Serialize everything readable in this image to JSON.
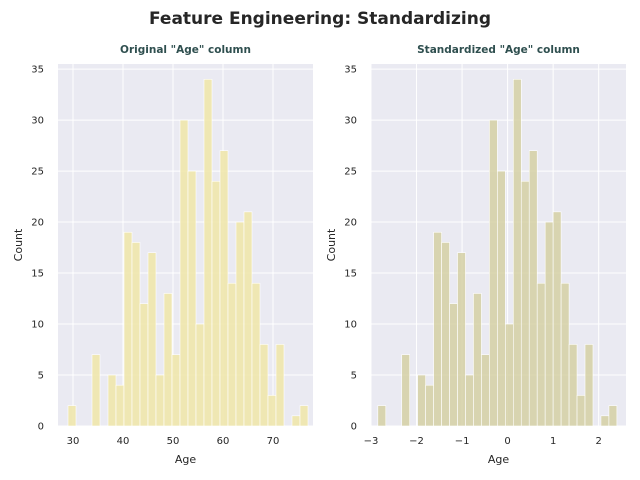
{
  "figure": {
    "suptitle": "Feature Engineering: Standardizing"
  },
  "chart_data": [
    {
      "type": "bar",
      "title": "Original \"Age\" column",
      "xlabel": "Age",
      "ylabel": "Count",
      "xlim": [
        27,
        78
      ],
      "ylim": [
        0,
        35.5
      ],
      "xticks": [
        30,
        40,
        50,
        60,
        70
      ],
      "xtick_labels": [
        "30",
        "40",
        "50",
        "60",
        "70"
      ],
      "yticks": [
        0,
        5,
        10,
        15,
        20,
        25,
        30,
        35
      ],
      "ytick_labels": [
        "0",
        "5",
        "10",
        "15",
        "20",
        "25",
        "30",
        "35"
      ],
      "bar_color": "#f0e6a8",
      "background_color": "#eaeaf2",
      "grid": true,
      "bin_start": 29,
      "bin_width": 1.6,
      "counts": [
        2,
        0,
        0,
        7,
        0,
        5,
        4,
        19,
        18,
        12,
        17,
        5,
        13,
        7,
        30,
        25,
        10,
        34,
        24,
        27,
        14,
        20,
        21,
        14,
        8,
        3,
        8,
        0,
        1,
        2
      ]
    },
    {
      "type": "bar",
      "title": "Standardized \"Age\" column",
      "xlabel": "Age",
      "ylabel": "Count",
      "xlim": [
        -3.0,
        2.6
      ],
      "ylim": [
        0,
        35.5
      ],
      "xticks": [
        -3,
        -2,
        -1,
        0,
        1,
        2
      ],
      "xtick_labels": [
        "−3",
        "−2",
        "−1",
        "0",
        "1",
        "2"
      ],
      "yticks": [
        0,
        5,
        10,
        15,
        20,
        25,
        30,
        35
      ],
      "ytick_labels": [
        "0",
        "5",
        "10",
        "15",
        "20",
        "25",
        "30",
        "35"
      ],
      "bar_color": "#d5d0a4",
      "background_color": "#eaeaf2",
      "grid": true,
      "bin_start": -2.85,
      "bin_width": 0.175,
      "counts": [
        2,
        0,
        0,
        7,
        0,
        5,
        4,
        19,
        18,
        12,
        17,
        5,
        13,
        7,
        30,
        25,
        10,
        34,
        24,
        27,
        14,
        20,
        21,
        14,
        8,
        3,
        8,
        0,
        1,
        2
      ]
    }
  ]
}
